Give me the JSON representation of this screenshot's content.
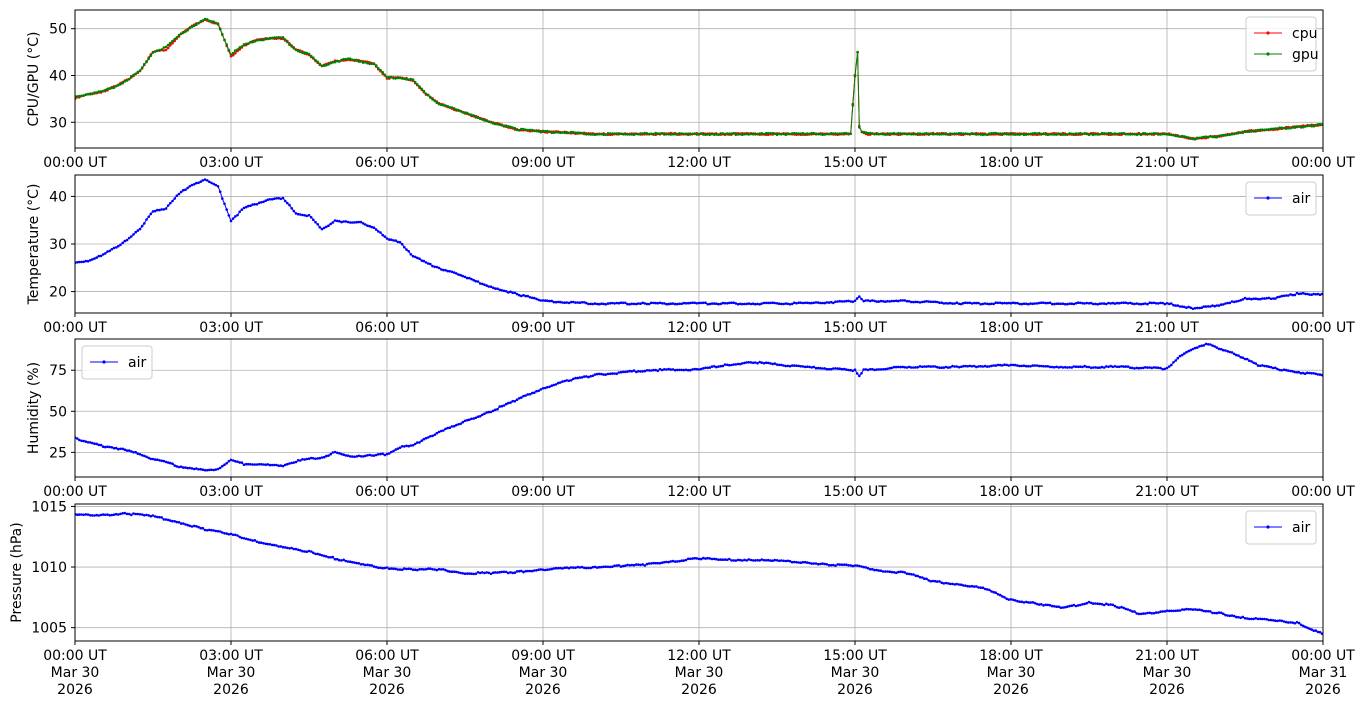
{
  "chart_data": [
    {
      "type": "line",
      "ylabel": "CPU/GPU (°C)",
      "xlabel": "",
      "xlim": [
        "2026-03-30T00:00Z",
        "2026-03-31T00:00Z"
      ],
      "ylim": [
        24.5,
        54
      ],
      "yticks": [
        30,
        40,
        50
      ],
      "xtick_labels": [
        "00:00 UT",
        "03:00 UT",
        "06:00 UT",
        "09:00 UT",
        "12:00 UT",
        "15:00 UT",
        "18:00 UT",
        "21:00 UT",
        "00:00 UT"
      ],
      "grid": true,
      "legend": "upper right",
      "series": [
        {
          "name": "cpu",
          "color": "#ff0000",
          "x": [
            "00:00",
            "00:15",
            "00:30",
            "00:45",
            "01:00",
            "01:15",
            "01:30",
            "01:45",
            "02:00",
            "02:15",
            "02:30",
            "02:45",
            "03:00",
            "03:15",
            "03:30",
            "03:45",
            "04:00",
            "04:15",
            "04:30",
            "04:45",
            "05:00",
            "05:15",
            "05:30",
            "05:45",
            "06:00",
            "06:15",
            "06:30",
            "06:45",
            "07:00",
            "07:30",
            "08:00",
            "08:30",
            "09:00",
            "10:00",
            "11:00",
            "12:00",
            "13:00",
            "14:00",
            "14:55",
            "15:00",
            "15:03",
            "15:05",
            "15:08",
            "15:15",
            "16:00",
            "17:00",
            "18:00",
            "19:00",
            "20:00",
            "21:00",
            "21:30",
            "22:00",
            "22:30",
            "23:00",
            "23:30",
            "23:59"
          ],
          "y": [
            35,
            36,
            36.5,
            37.5,
            39,
            41,
            45,
            45.5,
            48.5,
            50.5,
            52,
            51,
            44,
            46.5,
            47.5,
            48,
            48,
            45.5,
            44.5,
            42,
            43,
            43.5,
            43,
            42.5,
            39.5,
            39.5,
            39,
            36,
            34,
            32,
            30,
            28.5,
            28,
            27.5,
            27.5,
            27.5,
            27.5,
            27.5,
            27.5,
            40,
            45,
            29,
            28,
            27.5,
            27.5,
            27.5,
            27.5,
            27.5,
            27.5,
            27.5,
            26.5,
            27,
            28,
            28.5,
            29,
            29.5
          ]
        },
        {
          "name": "gpu",
          "color": "#008000",
          "x": [
            "00:00",
            "00:15",
            "00:30",
            "00:45",
            "01:00",
            "01:15",
            "01:30",
            "01:45",
            "02:00",
            "02:15",
            "02:30",
            "02:45",
            "03:00",
            "03:15",
            "03:30",
            "03:45",
            "04:00",
            "04:15",
            "04:30",
            "04:45",
            "05:00",
            "05:15",
            "05:30",
            "05:45",
            "06:00",
            "06:15",
            "06:30",
            "06:45",
            "07:00",
            "07:30",
            "08:00",
            "08:30",
            "09:00",
            "10:00",
            "11:00",
            "12:00",
            "13:00",
            "14:00",
            "14:55",
            "15:00",
            "15:03",
            "15:05",
            "15:08",
            "15:15",
            "16:00",
            "17:00",
            "18:00",
            "19:00",
            "20:00",
            "21:00",
            "21:30",
            "22:00",
            "22:30",
            "23:00",
            "23:30",
            "23:59"
          ],
          "y": [
            35.5,
            36,
            36.5,
            37.5,
            39,
            41,
            45,
            46,
            48.5,
            50.5,
            52,
            51,
            44.5,
            46.5,
            47.5,
            48,
            48,
            45.5,
            44.5,
            42,
            43,
            43.5,
            43,
            42.5,
            39.5,
            39.5,
            39,
            36,
            34,
            32,
            30,
            28.5,
            28,
            27.5,
            27.5,
            27.5,
            27.5,
            27.5,
            27.5,
            40,
            45,
            29,
            28,
            27.5,
            27.5,
            27.5,
            27.5,
            27.5,
            27.5,
            27.5,
            26.5,
            27,
            28,
            28.5,
            29,
            29.5
          ]
        }
      ]
    },
    {
      "type": "line",
      "ylabel": "Temperature (°C)",
      "xlabel": "",
      "xlim": [
        "2026-03-30T00:00Z",
        "2026-03-31T00:00Z"
      ],
      "ylim": [
        15.5,
        44.5
      ],
      "yticks": [
        20,
        30,
        40
      ],
      "xtick_labels": [
        "00:00 UT",
        "03:00 UT",
        "06:00 UT",
        "09:00 UT",
        "12:00 UT",
        "15:00 UT",
        "18:00 UT",
        "21:00 UT",
        "00:00 UT"
      ],
      "grid": true,
      "legend": "upper right",
      "series": [
        {
          "name": "air",
          "color": "#0000ff",
          "x": [
            "00:00",
            "00:15",
            "00:30",
            "00:45",
            "01:00",
            "01:15",
            "01:30",
            "01:45",
            "02:00",
            "02:15",
            "02:30",
            "02:45",
            "03:00",
            "03:15",
            "03:30",
            "03:45",
            "04:00",
            "04:15",
            "04:30",
            "04:45",
            "05:00",
            "05:15",
            "05:30",
            "05:45",
            "06:00",
            "06:15",
            "06:30",
            "06:45",
            "07:00",
            "07:30",
            "08:00",
            "08:30",
            "09:00",
            "10:00",
            "11:00",
            "12:00",
            "13:00",
            "14:00",
            "15:00",
            "15:05",
            "15:10",
            "16:00",
            "17:00",
            "18:00",
            "19:00",
            "20:00",
            "21:00",
            "21:30",
            "22:00",
            "22:30",
            "23:00",
            "23:30",
            "23:59"
          ],
          "y": [
            26,
            26.5,
            27.5,
            29,
            31,
            33,
            37,
            37.5,
            40.5,
            42.5,
            43.5,
            42,
            35,
            37.5,
            38.5,
            39.5,
            39.5,
            36.5,
            36,
            33,
            35,
            34.5,
            34.5,
            33.5,
            31,
            30.5,
            27.5,
            26,
            25,
            23,
            21,
            19.5,
            18,
            17.5,
            17.5,
            17.5,
            17.5,
            17.5,
            18,
            19,
            18,
            18,
            17.5,
            17.5,
            17.5,
            17.5,
            17.5,
            16.5,
            17,
            18.5,
            18.5,
            19.5,
            19.5
          ]
        }
      ]
    },
    {
      "type": "line",
      "ylabel": "Humidity (%)",
      "xlabel": "",
      "xlim": [
        "2026-03-30T00:00Z",
        "2026-03-31T00:00Z"
      ],
      "ylim": [
        10,
        94
      ],
      "yticks": [
        25,
        50,
        75
      ],
      "xtick_labels": [
        "00:00 UT",
        "03:00 UT",
        "06:00 UT",
        "09:00 UT",
        "12:00 UT",
        "15:00 UT",
        "18:00 UT",
        "21:00 UT",
        "00:00 UT"
      ],
      "grid": true,
      "legend": "upper left",
      "series": [
        {
          "name": "air",
          "color": "#0000ff",
          "x": [
            "00:00",
            "00:15",
            "00:30",
            "00:45",
            "01:00",
            "01:15",
            "01:30",
            "01:45",
            "02:00",
            "02:15",
            "02:30",
            "02:45",
            "03:00",
            "03:15",
            "03:30",
            "03:45",
            "04:00",
            "04:15",
            "04:30",
            "04:45",
            "05:00",
            "05:15",
            "05:30",
            "05:45",
            "06:00",
            "06:15",
            "06:30",
            "06:45",
            "07:00",
            "07:30",
            "08:00",
            "08:30",
            "09:00",
            "09:30",
            "10:00",
            "11:00",
            "12:00",
            "12:30",
            "13:00",
            "14:00",
            "15:00",
            "15:05",
            "15:10",
            "16:00",
            "17:00",
            "18:00",
            "19:00",
            "20:00",
            "21:00",
            "21:15",
            "21:45",
            "22:15",
            "22:45",
            "23:15",
            "23:59"
          ],
          "y": [
            34,
            31,
            29,
            28,
            26,
            24,
            21,
            19,
            16.5,
            15,
            14,
            15,
            20,
            18,
            18,
            17,
            17,
            19.5,
            21,
            22,
            25,
            22.5,
            23,
            23,
            24,
            28,
            29,
            34,
            37,
            44,
            50,
            57,
            64,
            69,
            72,
            75,
            75.5,
            78,
            80,
            77,
            75,
            72,
            75,
            77,
            77,
            78,
            77,
            77,
            76,
            84,
            91,
            86,
            78,
            75,
            72
          ]
        }
      ]
    },
    {
      "type": "line",
      "ylabel": "Pressure (hPa)",
      "xlabel": "",
      "xlim": [
        "2026-03-30T00:00Z",
        "2026-03-31T00:00Z"
      ],
      "ylim": [
        1003.9,
        1015.2
      ],
      "yticks": [
        1005,
        1010,
        1015
      ],
      "xtick_labels": [
        "00:00 UT\nMar 30\n2026",
        "03:00 UT\nMar 30\n2026",
        "06:00 UT\nMar 30\n2026",
        "09:00 UT\nMar 30\n2026",
        "12:00 UT\nMar 30\n2026",
        "15:00 UT\nMar 30\n2026",
        "18:00 UT\nMar 30\n2026",
        "21:00 UT\nMar 30\n2026",
        "00:00 UT\nMar 31\n2026"
      ],
      "grid": true,
      "legend": "upper right",
      "series": [
        {
          "name": "air",
          "color": "#0000ff",
          "x": [
            "00:00",
            "00:30",
            "01:00",
            "01:30",
            "02:00",
            "02:30",
            "03:00",
            "03:30",
            "04:00",
            "04:30",
            "05:00",
            "05:30",
            "06:00",
            "06:30",
            "07:00",
            "07:30",
            "08:00",
            "08:30",
            "09:00",
            "09:30",
            "10:00",
            "10:30",
            "11:00",
            "11:30",
            "12:00",
            "12:30",
            "13:00",
            "13:30",
            "14:00",
            "14:30",
            "15:00",
            "15:30",
            "16:00",
            "16:30",
            "17:00",
            "17:30",
            "18:00",
            "18:30",
            "19:00",
            "19:30",
            "20:00",
            "20:30",
            "21:00",
            "21:30",
            "22:00",
            "22:30",
            "23:00",
            "23:30",
            "23:59"
          ],
          "y": [
            1014.3,
            1014.3,
            1014.4,
            1014.2,
            1013.7,
            1013.1,
            1012.7,
            1012.1,
            1011.6,
            1011.3,
            1010.7,
            1010.2,
            1009.9,
            1009.8,
            1009.8,
            1009.5,
            1009.5,
            1009.6,
            1009.8,
            1009.9,
            1010.0,
            1010.1,
            1010.2,
            1010.5,
            1010.7,
            1010.6,
            1010.6,
            1010.5,
            1010.4,
            1010.2,
            1010.1,
            1009.7,
            1009.5,
            1008.8,
            1008.6,
            1008.2,
            1007.3,
            1007.0,
            1006.6,
            1007.1,
            1006.8,
            1006.1,
            1006.4,
            1006.5,
            1006.2,
            1005.8,
            1005.6,
            1005.4,
            1004.5
          ]
        }
      ]
    }
  ]
}
